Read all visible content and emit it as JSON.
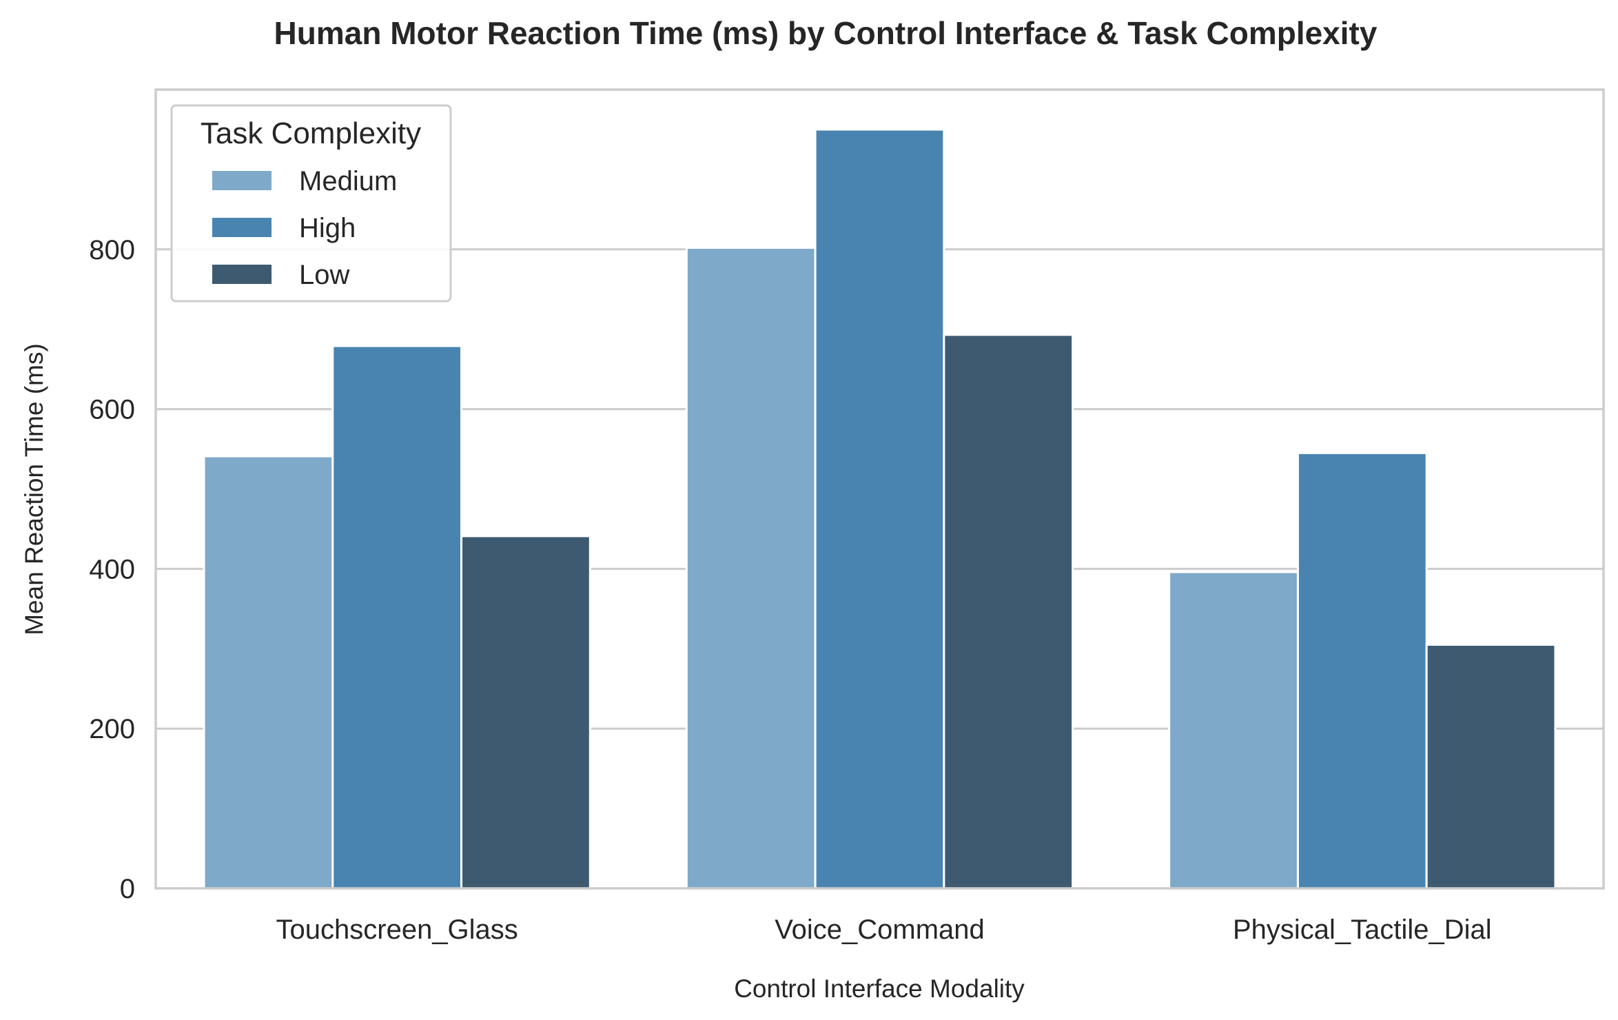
{
  "chart_data": {
    "type": "bar",
    "title": "Human Motor Reaction Time (ms) by Control Interface & Task Complexity",
    "xlabel": "Control Interface Modality",
    "ylabel": "Mean Reaction Time (ms)",
    "categories": [
      "Touchscreen_Glass",
      "Voice_Command",
      "Physical_Tactile_Dial"
    ],
    "series": [
      {
        "name": "Medium",
        "color": "#7fa9c9",
        "values": [
          541,
          802,
          396
        ]
      },
      {
        "name": "High",
        "color": "#4984b0",
        "values": [
          679,
          950,
          545
        ]
      },
      {
        "name": "Low",
        "color": "#3d5a70",
        "values": [
          441,
          693,
          305
        ]
      }
    ],
    "ylim": [
      0,
      1000
    ],
    "yticks": [
      0,
      200,
      400,
      600,
      800
    ],
    "grid": "horizontal",
    "legend": {
      "title": "Task Complexity",
      "placement": "top-left"
    }
  }
}
